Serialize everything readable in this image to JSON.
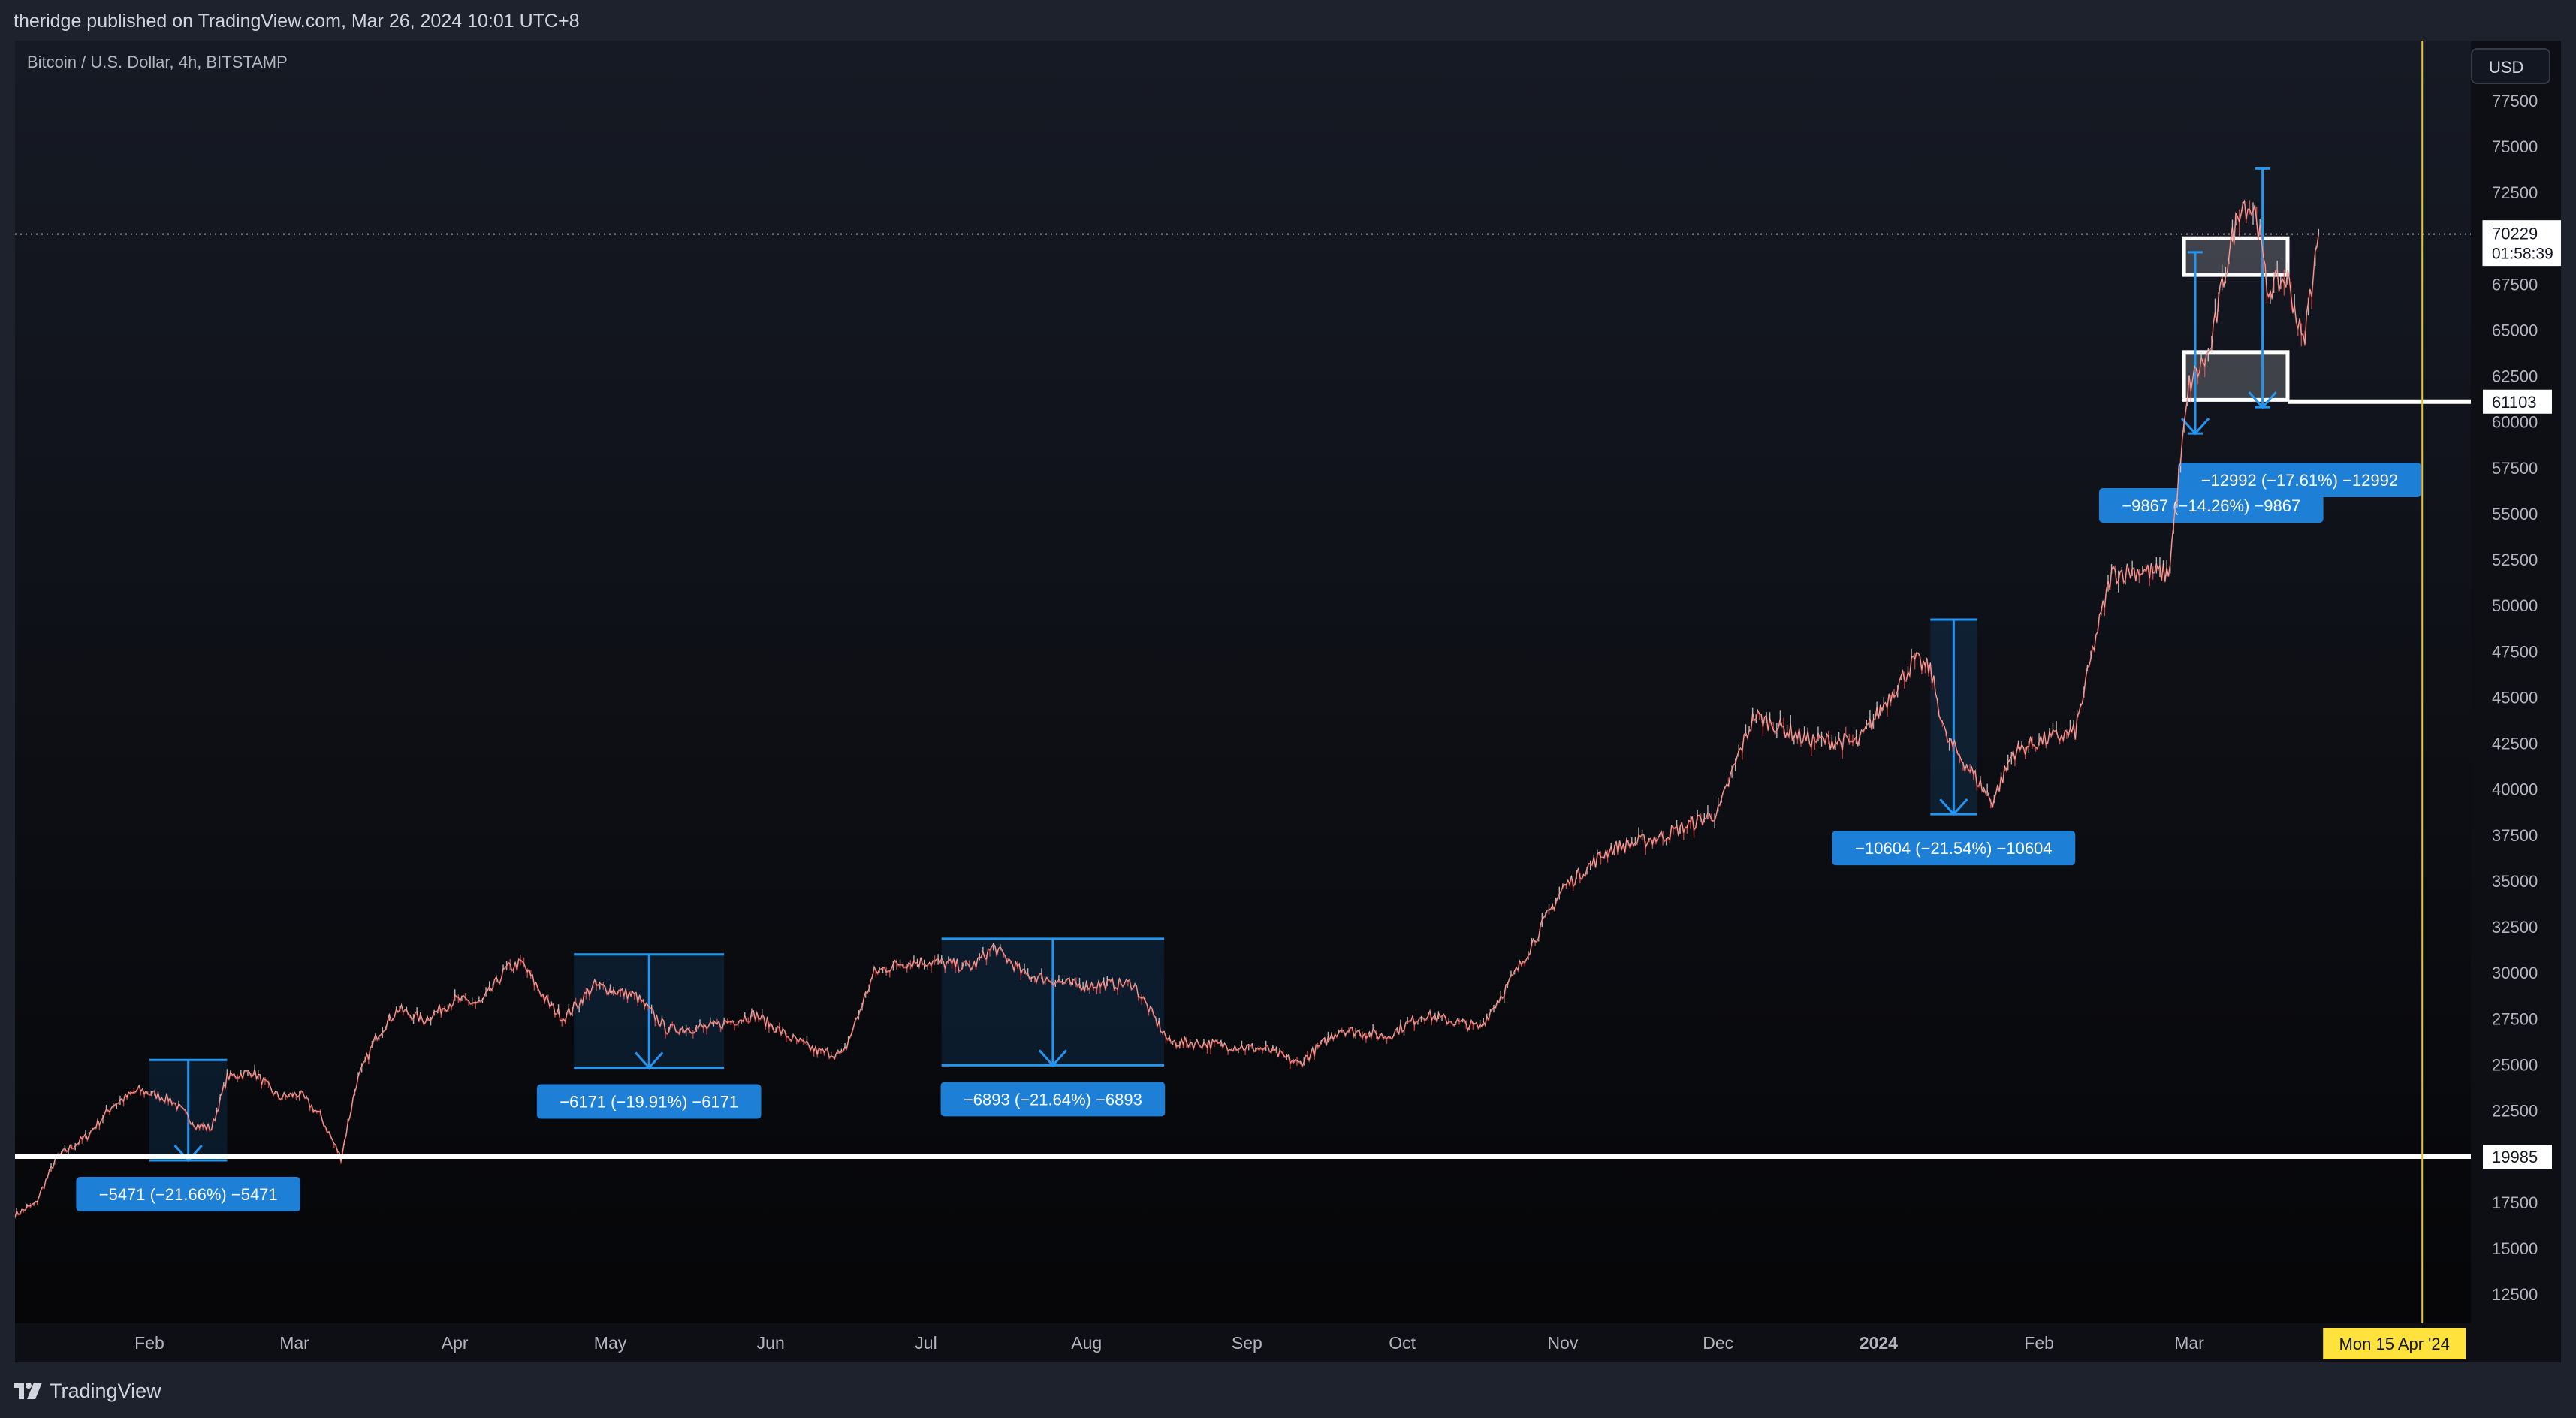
{
  "header": {
    "published_text": "theridge published on TradingView.com, Mar 26, 2024 10:01 UTC+8"
  },
  "chart": {
    "title": "Bitcoin / U.S. Dollar, 4h, BITSTAMP",
    "currency": "USD"
  },
  "footer": {
    "brand": "TradingView"
  },
  "colors": {
    "background": "#0c0d11",
    "chrome": "#1e222d",
    "candle_up": "#e8dcd6",
    "candle_down": "#ef5350",
    "measure_blue": "#2196f3",
    "label_blue": "#1e7fd6",
    "level_white": "#ffffff",
    "cursor_line": "#e5c22c"
  },
  "chart_data": {
    "type": "line",
    "title": "Bitcoin / U.S. Dollar, 4h, BITSTAMP",
    "x": [
      "2023-01-06",
      "2023-01-10",
      "2023-01-14",
      "2023-01-20",
      "2023-01-25",
      "2023-01-30",
      "2023-02-05",
      "2023-02-10",
      "2023-02-13",
      "2023-02-16",
      "2023-02-21",
      "2023-02-26",
      "2023-03-02",
      "2023-03-06",
      "2023-03-10",
      "2023-03-13",
      "2023-03-17",
      "2023-03-21",
      "2023-03-26",
      "2023-04-01",
      "2023-04-06",
      "2023-04-11",
      "2023-04-14",
      "2023-04-19",
      "2023-04-22",
      "2023-04-28",
      "2023-05-06",
      "2023-05-12",
      "2023-05-20",
      "2023-05-29",
      "2023-06-05",
      "2023-06-10",
      "2023-06-15",
      "2023-06-21",
      "2023-06-26",
      "2023-07-01",
      "2023-07-10",
      "2023-07-14",
      "2023-07-20",
      "2023-07-30",
      "2023-08-10",
      "2023-08-17",
      "2023-08-25",
      "2023-09-05",
      "2023-09-11",
      "2023-09-19",
      "2023-09-28",
      "2023-10-05",
      "2023-10-16",
      "2023-10-20",
      "2023-10-24",
      "2023-11-01",
      "2023-11-10",
      "2023-11-20",
      "2023-12-01",
      "2023-12-05",
      "2023-12-08",
      "2023-12-18",
      "2023-12-28",
      "2024-01-03",
      "2024-01-08",
      "2024-01-11",
      "2024-01-14",
      "2024-01-18",
      "2024-01-23",
      "2024-01-27",
      "2024-02-01",
      "2024-02-08",
      "2024-02-12",
      "2024-02-15",
      "2024-02-20",
      "2024-02-26",
      "2024-02-28",
      "2024-03-01",
      "2024-03-05",
      "2024-03-08",
      "2024-03-11",
      "2024-03-14",
      "2024-03-16",
      "2024-03-20",
      "2024-03-23",
      "2024-03-26"
    ],
    "close": [
      16800,
      17400,
      19900,
      21100,
      22800,
      23600,
      23100,
      21700,
      21500,
      24300,
      24600,
      23200,
      23400,
      22200,
      19900,
      24000,
      26600,
      28000,
      27400,
      28500,
      28300,
      30200,
      30500,
      28300,
      27500,
      29300,
      28700,
      26900,
      27000,
      27700,
      26400,
      25700,
      25500,
      30000,
      30500,
      30600,
      30300,
      31400,
      29900,
      29300,
      29400,
      26200,
      26100,
      25800,
      25000,
      26900,
      26500,
      27700,
      27000,
      28700,
      30500,
      34600,
      36700,
      37400,
      38700,
      41900,
      44000,
      42700,
      42500,
      45000,
      47000,
      46500,
      42800,
      41300,
      39300,
      42000,
      42600,
      43100,
      48300,
      51700,
      51900,
      51700,
      57000,
      62000,
      63800,
      68300,
      72000,
      71400,
      67200,
      67800,
      64200,
      70229
    ],
    "xlabel": "",
    "ylabel": "",
    "ylim": [
      10000,
      80000
    ],
    "y_ticks": [
      "77500",
      "75000",
      "72500",
      "70000",
      "67500",
      "65000",
      "62500",
      "60000",
      "57500",
      "55000",
      "52500",
      "50000",
      "47500",
      "45000",
      "42500",
      "40000",
      "37500",
      "35000",
      "32500",
      "30000",
      "27500",
      "25000",
      "22500",
      "20000",
      "17500",
      "15000",
      "12500"
    ],
    "x_ticks": [
      "Feb",
      "Mar",
      "Apr",
      "May",
      "Jun",
      "Jul",
      "Aug",
      "Sep",
      "Oct",
      "Nov",
      "Dec",
      "2024",
      "Feb",
      "Mar"
    ],
    "price_labels": {
      "last": "70229",
      "countdown": "01:58:39",
      "level_high": "61103",
      "level_low": "19985"
    },
    "cursor_label": "Mon 15 Apr '24",
    "levels": [
      19985,
      61103
    ],
    "measures": [
      {
        "start": "2023-02-01",
        "end": "2023-02-16",
        "top": 25250,
        "bottom": 19780,
        "label": "−5471 (−21.66%) −5471"
      },
      {
        "start": "2023-04-24",
        "end": "2023-05-23",
        "top": 31000,
        "bottom": 24830,
        "label": "−6171 (−19.91%) −6171"
      },
      {
        "start": "2023-07-04",
        "end": "2023-08-16",
        "top": 31850,
        "bottom": 24960,
        "label": "−6893 (−21.64%) −6893"
      },
      {
        "start": "2024-01-11",
        "end": "2024-01-20",
        "top": 49230,
        "bottom": 38630,
        "label": "−10604 (−21.54%) −10604"
      },
      {
        "start": "2024-03-01",
        "end": "2024-03-01",
        "top": 69240,
        "bottom": 59370,
        "label": "−9867 (−14.26%) −9867"
      },
      {
        "start": "2024-03-14",
        "end": "2024-03-14",
        "top": 73800,
        "bottom": 60800,
        "label": "−12992 (−17.61%) −12992"
      }
    ],
    "zones": [
      {
        "start": "2024-02-29",
        "end": "2024-03-20",
        "top": 70000,
        "bottom": 68000
      },
      {
        "start": "2024-02-29",
        "end": "2024-03-20",
        "top": 63800,
        "bottom": 61200
      }
    ],
    "grid": false,
    "legend": "none"
  }
}
